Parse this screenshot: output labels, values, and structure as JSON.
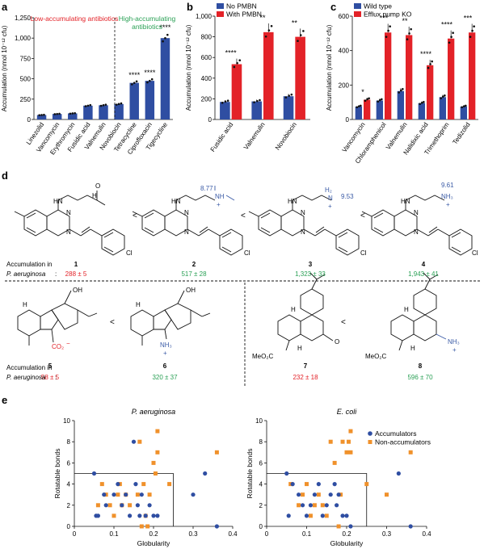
{
  "panel_labels": {
    "a": "a",
    "b": "b",
    "c": "c",
    "d": "d",
    "e": "e"
  },
  "colors": {
    "blue": "#2f4ea2",
    "red": "#e32228",
    "green": "#2aa055",
    "orange": "#f0912b",
    "black": "#111111",
    "struct_blue": "#3b5ba6"
  },
  "ylabel_accum": "Accumulation (nmol 10⁻¹² cfu)",
  "chart_data": [
    {
      "id": "a",
      "type": "bar",
      "ylabel": "Accumulation (nmol 10⁻¹² cfu)",
      "ylim": [
        0,
        1250
      ],
      "yticks": [
        "0",
        "250",
        "500",
        "750",
        "1,000",
        "1,250"
      ],
      "ytick_values": [
        0,
        250,
        500,
        750,
        1000,
        1250
      ],
      "categories": [
        "Linezolid",
        "Vancomycin",
        "Erythromycin",
        "Fusidic acid",
        "Valnemulin",
        "Novobiocin",
        "Tetracycline",
        "Ciprofloxacin",
        "Tigecycline"
      ],
      "values": [
        55,
        68,
        75,
        170,
        175,
        190,
        450,
        475,
        1000
      ],
      "significance": [
        "",
        "",
        "",
        "",
        "",
        "",
        "****",
        "****",
        "****"
      ],
      "annotations": {
        "low": "Low-accumulating antibiotics",
        "high_line1": "High-accumulating",
        "high_line2": "antibiotics"
      }
    },
    {
      "id": "b",
      "type": "bar",
      "ylabel": "Accumulation (nmol 10⁻¹² cfu)",
      "ylim": [
        0,
        1000
      ],
      "yticks": [
        "0",
        "200",
        "400",
        "600",
        "800",
        "1,000"
      ],
      "ytick_values": [
        0,
        200,
        400,
        600,
        800,
        1000
      ],
      "categories": [
        "Fusidic acid",
        "Valnemulin",
        "Novobiocin"
      ],
      "legend": "top-left",
      "series": [
        {
          "name": "No PMBN",
          "values": [
            170,
            175,
            225
          ]
        },
        {
          "name": "With PMBN",
          "values": [
            535,
            845,
            800
          ]
        }
      ],
      "significance": [
        "****",
        "**",
        "**"
      ]
    },
    {
      "id": "c",
      "type": "bar",
      "ylabel": "Accumulation (nmol 10⁻¹² cfu)",
      "ylim": [
        0,
        600
      ],
      "yticks": [
        "0",
        "200",
        "400",
        "600"
      ],
      "ytick_values": [
        0,
        200,
        400,
        600
      ],
      "categories": [
        "Vancomycin",
        "Chloramphenicol",
        "Valnemulin",
        "Nalidixic acid",
        "Trimethoprim",
        "Tedizolid"
      ],
      "legend": "top-left",
      "series": [
        {
          "name": "Wild type",
          "values": [
            75,
            110,
            165,
            95,
            130,
            75
          ]
        },
        {
          "name": "Efflux pump KO",
          "values": [
            115,
            505,
            490,
            315,
            470,
            505
          ]
        }
      ],
      "significance": [
        "*",
        "***",
        "**",
        "****",
        "****",
        "***"
      ]
    },
    {
      "id": "e1",
      "type": "scatter",
      "title": "P. aeruginosa",
      "xlabel": "Globularity",
      "ylabel": "Rotatable bonds",
      "xlim": [
        0,
        0.4
      ],
      "ylim": [
        0,
        10
      ],
      "xticks": [
        "0",
        "0.1",
        "0.2",
        "0.3",
        "0.4"
      ],
      "xtick_values": [
        0,
        0.1,
        0.2,
        0.3,
        0.4
      ],
      "yticks": [
        "0",
        "2",
        "4",
        "6",
        "8",
        "10"
      ],
      "ytick_values": [
        0,
        2,
        4,
        6,
        8,
        10
      ],
      "threshold_box": {
        "globularity_max": 0.25,
        "rotatable_bonds_max": 5
      },
      "series": [
        {
          "name": "Accumulators",
          "x": [
            0.05,
            0.055,
            0.06,
            0.075,
            0.08,
            0.1,
            0.11,
            0.12,
            0.13,
            0.14,
            0.15,
            0.155,
            0.16,
            0.165,
            0.17,
            0.18,
            0.19,
            0.2,
            0.21,
            0.3,
            0.33,
            0.36
          ],
          "y": [
            5,
            1,
            1,
            3,
            2,
            3,
            4,
            2,
            3,
            1,
            8,
            4,
            2,
            1,
            3,
            1,
            2,
            1,
            1,
            3,
            5,
            0
          ]
        },
        {
          "name": "Non-accumulators",
          "x": [
            0.06,
            0.07,
            0.08,
            0.09,
            0.1,
            0.11,
            0.115,
            0.12,
            0.13,
            0.14,
            0.16,
            0.165,
            0.17,
            0.175,
            0.18,
            0.185,
            0.19,
            0.2,
            0.205,
            0.21,
            0.21,
            0.24,
            0.36
          ],
          "y": [
            2,
            4,
            3,
            2,
            1,
            3,
            4,
            2,
            3,
            2,
            3,
            8,
            0,
            4,
            1,
            0,
            3,
            6,
            5,
            7,
            9,
            4,
            7
          ]
        }
      ]
    },
    {
      "id": "e2",
      "type": "scatter",
      "title": "E. coli",
      "xlabel": "Globularity",
      "ylabel": "Rotatable bonds",
      "xlim": [
        0,
        0.4
      ],
      "ylim": [
        0,
        10
      ],
      "xticks": [
        "0",
        "0.1",
        "0.2",
        "0.3",
        "0.4"
      ],
      "xtick_values": [
        0,
        0.1,
        0.2,
        0.3,
        0.4
      ],
      "yticks": [
        "0",
        "2",
        "4",
        "6",
        "8",
        "10"
      ],
      "ytick_values": [
        0,
        2,
        4,
        6,
        8,
        10
      ],
      "threshold_box": {
        "globularity_max": 0.25,
        "rotatable_bonds_max": 5
      },
      "legend": "top-right",
      "series": [
        {
          "name": "Accumulators",
          "x": [
            0.05,
            0.055,
            0.065,
            0.08,
            0.09,
            0.1,
            0.11,
            0.12,
            0.13,
            0.14,
            0.15,
            0.16,
            0.17,
            0.175,
            0.18,
            0.19,
            0.2,
            0.21,
            0.33,
            0.36
          ],
          "y": [
            5,
            1,
            4,
            3,
            2,
            1,
            2,
            3,
            4,
            1,
            2,
            3,
            4,
            2,
            3,
            1,
            1,
            0,
            5,
            0
          ]
        },
        {
          "name": "Non-accumulators",
          "x": [
            0.06,
            0.08,
            0.09,
            0.1,
            0.11,
            0.12,
            0.13,
            0.14,
            0.15,
            0.16,
            0.17,
            0.18,
            0.185,
            0.19,
            0.2,
            0.205,
            0.21,
            0.21,
            0.25,
            0.3,
            0.36
          ],
          "y": [
            4,
            2,
            3,
            4,
            1,
            2,
            3,
            2,
            1,
            8,
            6,
            0,
            3,
            8,
            7,
            8,
            9,
            7,
            4,
            3,
            7
          ]
        }
      ]
    }
  ],
  "compounds": {
    "row1_label_line1": "Accumulation in",
    "row1_label_line2": "P. aeruginosa",
    "row1_label_colon": ":",
    "row2_label_line1": "Accumulation in",
    "row2_label_line2": "P. aeruginosa",
    "row2_label_colon": ":",
    "less_than": "<",
    "items": [
      {
        "number": "1",
        "value": "288 ± 5",
        "color": "red"
      },
      {
        "number": "2",
        "value": "517 ± 28",
        "color": "green"
      },
      {
        "number": "3",
        "value": "1,323 ± 33",
        "color": "green"
      },
      {
        "number": "4",
        "value": "1,943 ± 41",
        "color": "green"
      },
      {
        "number": "5",
        "value": "58 ± 5",
        "color": "red"
      },
      {
        "number": "6",
        "value": "320 ± 37",
        "color": "green"
      },
      {
        "number": "7",
        "value": "232 ± 18",
        "color": "red"
      },
      {
        "number": "8",
        "value": "596 ± 70",
        "color": "green"
      }
    ],
    "pka": [
      "8.77",
      "9.53",
      "9.61"
    ],
    "atoms": {
      "N": "N",
      "HN": "HN",
      "H": "H",
      "O": "O",
      "Cl": "Cl",
      "OH": "OH",
      "NH": "NH",
      "NH2": "NH₂",
      "NH3": "NH₃",
      "CO2": "CO₂",
      "minus": "−",
      "plus": "+",
      "MeO2C": "MeO₂C",
      "H2": "H₂",
      "N_plus": "N"
    }
  }
}
